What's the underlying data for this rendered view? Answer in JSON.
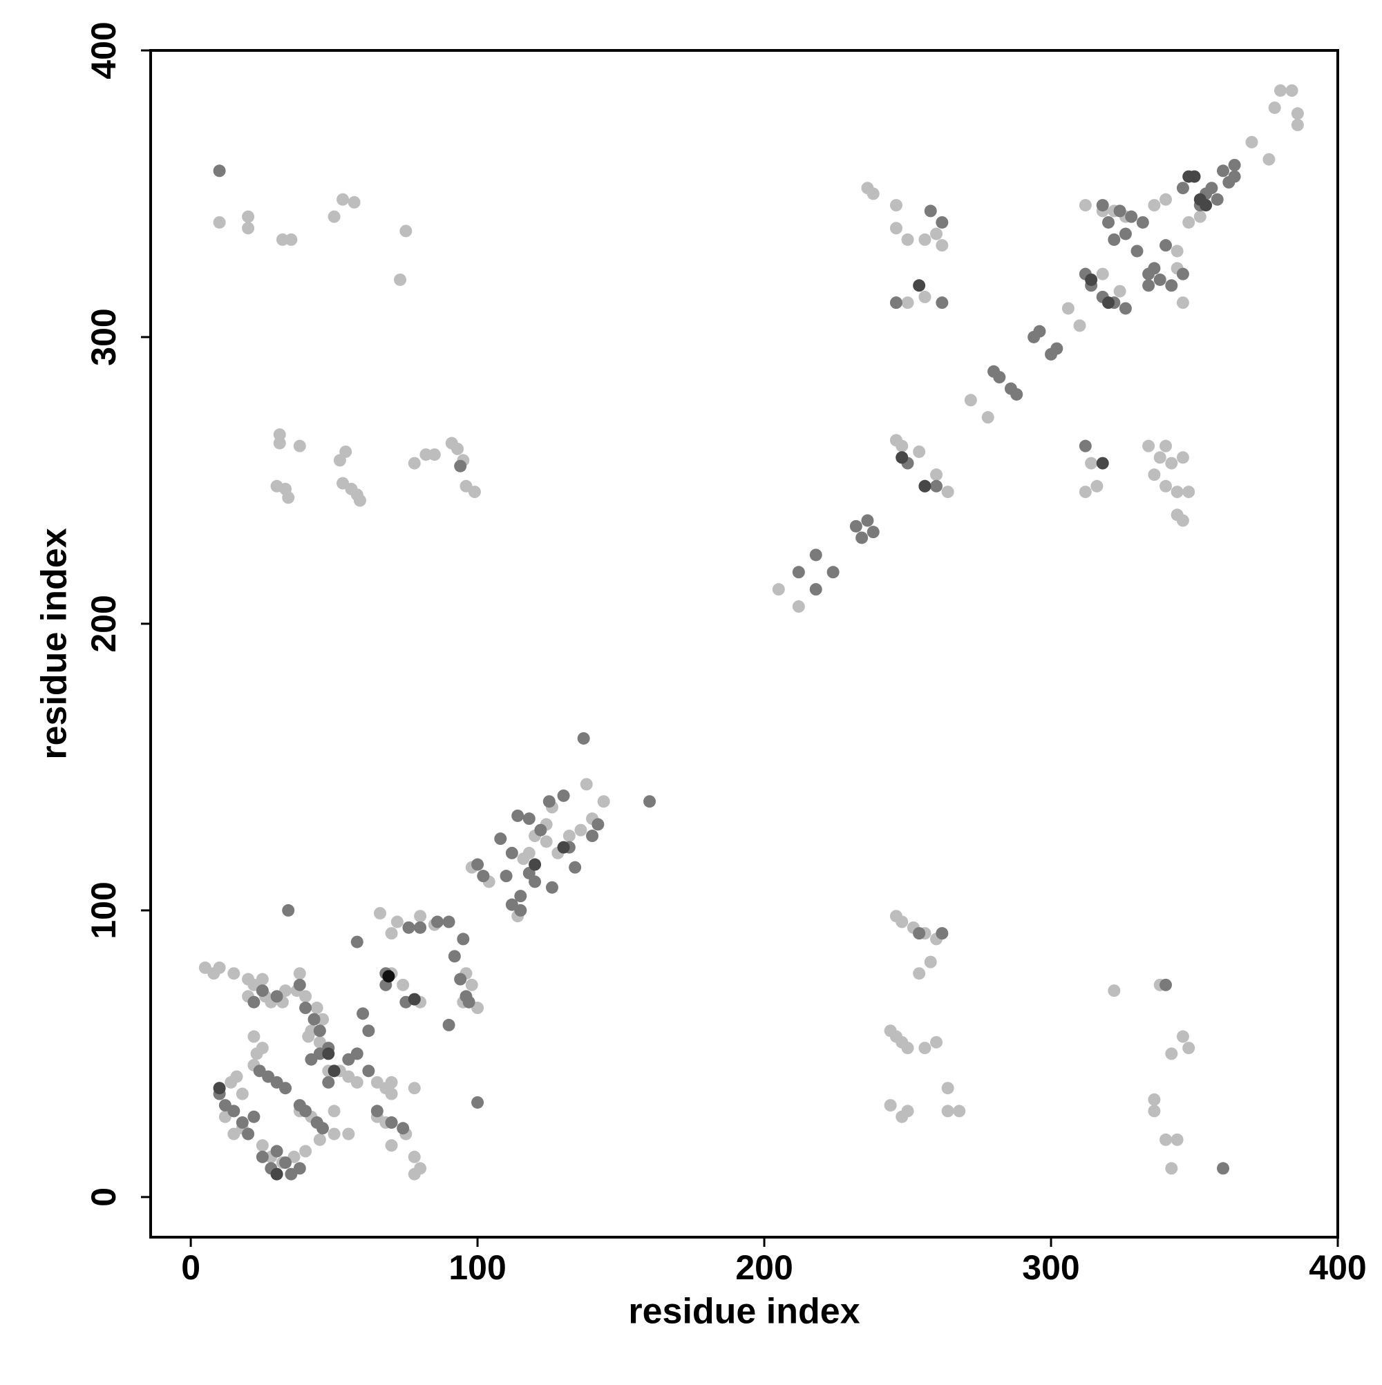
{
  "chart_data": {
    "type": "scatter",
    "x_label": "residue index",
    "y_label": "residue index",
    "xlim": [
      -14,
      400
    ],
    "ylim": [
      -14,
      400
    ],
    "xticks": [
      0,
      100,
      200,
      300,
      400
    ],
    "yticks": [
      0,
      100,
      200,
      300,
      400
    ],
    "series": [
      {
        "color": "#bdbdbd",
        "x": [
          10,
          20,
          20,
          32,
          35,
          50,
          53,
          57,
          73,
          75,
          31,
          31,
          30,
          33,
          34,
          38,
          52,
          54,
          53,
          56,
          58,
          59,
          78,
          82,
          85,
          91,
          93,
          95,
          96,
          99,
          8,
          10,
          15,
          20,
          22,
          25,
          26,
          28,
          32,
          38,
          37,
          40,
          44,
          46,
          41,
          45,
          22,
          23,
          22,
          25,
          10,
          14,
          16,
          18,
          12,
          15,
          18,
          25,
          28,
          32,
          36,
          40,
          45,
          50,
          55,
          48,
          52,
          55,
          58,
          65,
          68,
          70,
          65,
          68,
          70,
          75,
          78,
          78,
          80,
          78,
          70,
          66,
          70,
          72,
          80,
          85,
          96,
          98,
          95,
          100,
          74,
          70,
          80,
          42,
          38,
          42,
          50,
          5,
          20,
          33,
          98,
          104,
          114,
          118,
          120,
          124,
          126,
          128,
          132,
          136,
          138,
          144,
          140,
          124,
          116,
          205,
          212,
          272,
          278,
          306,
          310,
          236,
          238,
          246,
          246,
          250,
          256,
          260,
          262,
          246,
          250,
          256,
          312,
          318,
          320,
          324,
          336,
          340,
          344,
          344,
          346,
          348,
          352,
          370,
          376,
          378,
          380,
          384,
          386,
          386,
          346,
          344,
          334,
          338,
          340,
          342,
          346,
          336,
          340,
          344,
          348,
          314,
          316,
          312,
          246,
          248,
          254,
          260,
          264,
          326,
          318,
          322,
          246,
          248,
          252,
          256,
          260,
          258,
          254,
          244,
          246,
          248,
          250,
          256,
          260,
          264,
          264,
          268,
          244,
          248,
          250,
          322,
          338,
          346,
          348,
          342,
          336,
          336,
          340,
          344,
          342
        ],
        "values": [
          340,
          342,
          338,
          334,
          334,
          342,
          348,
          347,
          320,
          337,
          266,
          263,
          248,
          247,
          244,
          262,
          257,
          260,
          249,
          247,
          245,
          243,
          256,
          259,
          259,
          263,
          261,
          257,
          248,
          246,
          78,
          80,
          78,
          76,
          74,
          76,
          70,
          68,
          68,
          78,
          72,
          70,
          66,
          62,
          56,
          54,
          56,
          50,
          46,
          52,
          38,
          40,
          42,
          36,
          28,
          22,
          24,
          18,
          14,
          12,
          14,
          16,
          20,
          22,
          22,
          44,
          44,
          42,
          40,
          40,
          38,
          36,
          28,
          26,
          18,
          22,
          14,
          8,
          10,
          38,
          40,
          99,
          92,
          96,
          98,
          95,
          78,
          74,
          68,
          66,
          74,
          78,
          68,
          58,
          30,
          28,
          30,
          80,
          70,
          72,
          115,
          110,
          98,
          120,
          126,
          130,
          136,
          120,
          126,
          128,
          144,
          138,
          132,
          124,
          118,
          212,
          206,
          278,
          272,
          310,
          304,
          352,
          350,
          346,
          338,
          334,
          334,
          336,
          332,
          312,
          312,
          314,
          346,
          322,
          312,
          316,
          346,
          348,
          330,
          324,
          312,
          340,
          342,
          368,
          362,
          380,
          386,
          386,
          378,
          374,
          236,
          238,
          262,
          258,
          262,
          256,
          258,
          252,
          248,
          246,
          246,
          256,
          248,
          246,
          264,
          262,
          260,
          252,
          246,
          342,
          344,
          344,
          98,
          96,
          94,
          92,
          90,
          82,
          78,
          58,
          56,
          54,
          52,
          52,
          54,
          38,
          30,
          30,
          32,
          28,
          30,
          72,
          74,
          56,
          52,
          50,
          34,
          30,
          20,
          20,
          10
        ]
      },
      {
        "color": "#7a7a7a",
        "x": [
          10,
          94,
          10,
          12,
          15,
          18,
          20,
          22,
          24,
          27,
          30,
          33,
          25,
          28,
          30,
          35,
          38,
          38,
          40,
          44,
          46,
          42,
          45,
          48,
          40,
          43,
          45,
          38,
          22,
          25,
          30,
          60,
          58,
          68,
          68,
          76,
          80,
          86,
          90,
          92,
          95,
          94,
          96,
          90,
          97,
          75,
          62,
          65,
          70,
          74,
          34,
          58,
          62,
          100,
          55,
          48,
          30,
          33,
          100,
          102,
          108,
          112,
          110,
          114,
          118,
          112,
          115,
          118,
          120,
          126,
          122,
          125,
          130,
          132,
          134,
          140,
          142,
          137,
          160,
          115,
          212,
          218,
          218,
          224,
          232,
          236,
          234,
          238,
          280,
          282,
          286,
          288,
          294,
          296,
          300,
          302,
          248,
          250,
          256,
          260,
          262,
          246,
          262,
          258,
          312,
          314,
          318,
          320,
          324,
          326,
          328,
          330,
          332,
          336,
          334,
          340,
          342,
          346,
          334,
          338,
          352,
          354,
          360,
          362,
          364,
          364,
          356,
          358,
          346,
          322,
          318,
          322,
          326,
          312,
          340,
          360,
          254,
          262
        ],
        "values": [
          358,
          255,
          36,
          32,
          30,
          26,
          22,
          28,
          44,
          42,
          40,
          38,
          14,
          10,
          8,
          8,
          10,
          32,
          30,
          26,
          24,
          48,
          50,
          52,
          66,
          62,
          58,
          74,
          68,
          72,
          70,
          64,
          89,
          78,
          74,
          94,
          94,
          96,
          96,
          84,
          90,
          76,
          70,
          60,
          68,
          68,
          44,
          30,
          26,
          24,
          100,
          50,
          58,
          33,
          48,
          40,
          16,
          12,
          116,
          112,
          125,
          120,
          112,
          133,
          132,
          102,
          100,
          113,
          110,
          108,
          128,
          138,
          140,
          122,
          115,
          126,
          130,
          160,
          138,
          105,
          218,
          224,
          212,
          218,
          234,
          236,
          230,
          232,
          288,
          286,
          282,
          280,
          300,
          302,
          294,
          296,
          258,
          256,
          248,
          248,
          312,
          312,
          340,
          344,
          322,
          318,
          346,
          340,
          344,
          336,
          342,
          330,
          340,
          324,
          322,
          332,
          318,
          322,
          318,
          320,
          346,
          350,
          358,
          354,
          360,
          356,
          352,
          348,
          352,
          334,
          314,
          312,
          310,
          262,
          74,
          10,
          92,
          92
        ]
      },
      {
        "color": "#474747",
        "x": [
          48,
          50,
          10,
          78,
          30,
          130,
          120,
          248,
          256,
          254,
          318,
          350,
          352,
          354,
          348,
          314,
          320
        ],
        "values": [
          50,
          44,
          38,
          69,
          8,
          122,
          116,
          258,
          248,
          318,
          256,
          356,
          348,
          346,
          356,
          320,
          312
        ]
      },
      {
        "color": "#111111",
        "x": [
          69
        ],
        "values": [
          77
        ]
      }
    ]
  }
}
